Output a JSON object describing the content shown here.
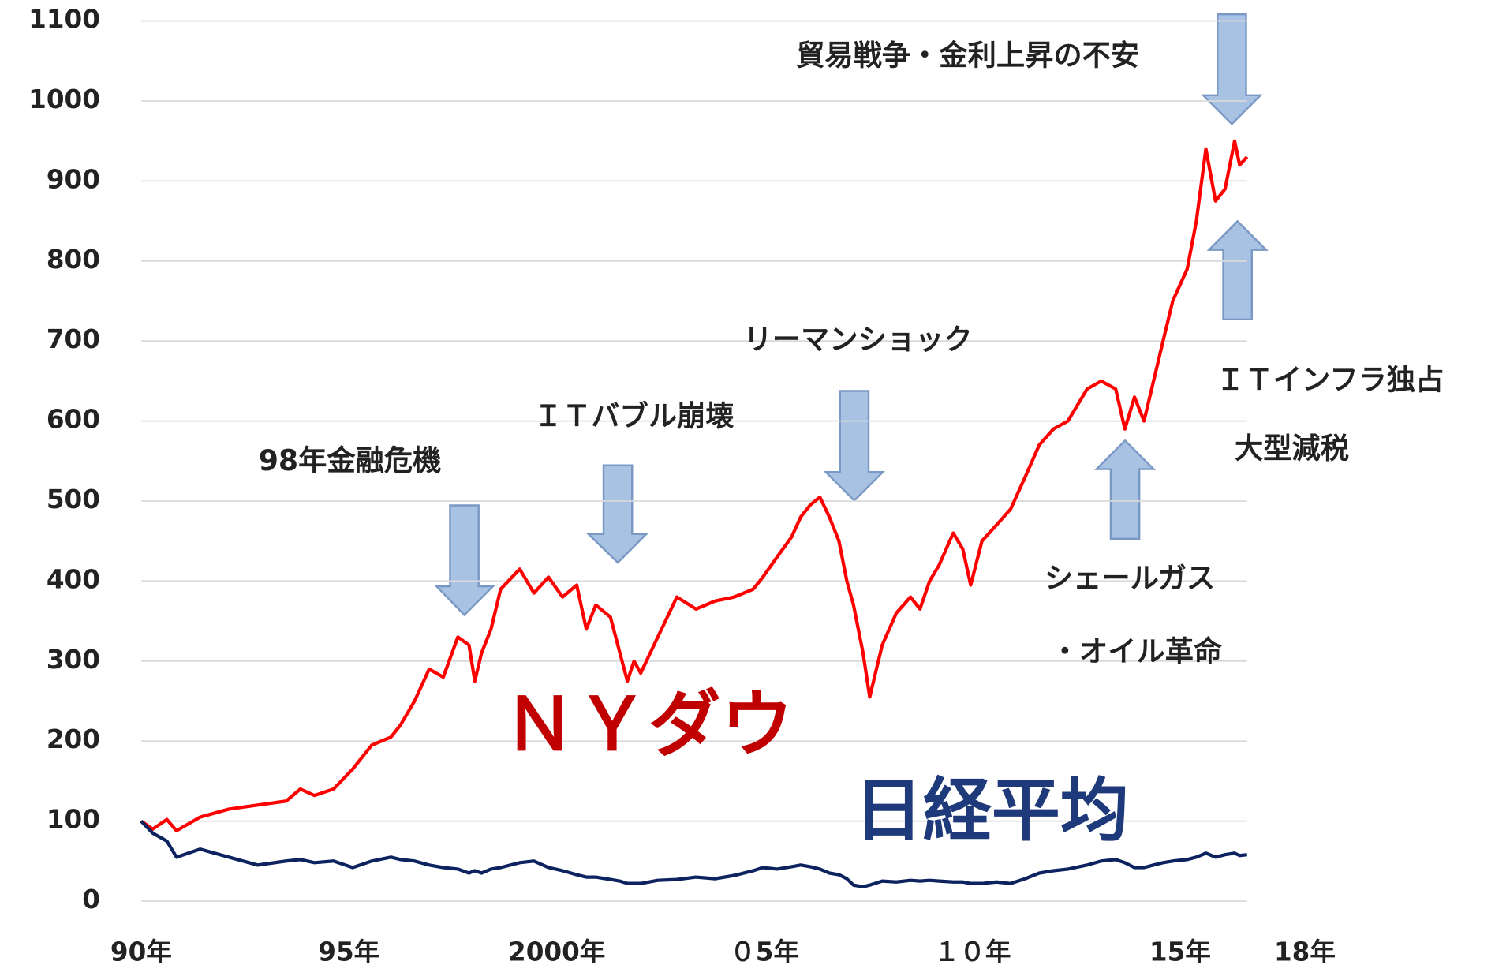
{
  "chart_data": {
    "type": "line",
    "x": [
      1990.0,
      1990.28,
      1990.62,
      1990.85,
      1991.42,
      1992.11,
      1992.8,
      1993.49,
      1993.83,
      1994.17,
      1994.63,
      1995.09,
      1995.55,
      1996.01,
      1996.24,
      1996.58,
      1996.93,
      1997.27,
      1997.62,
      1997.89,
      1998.03,
      1998.19,
      1998.42,
      1998.65,
      1999.11,
      1999.45,
      1999.8,
      2000.14,
      2000.48,
      2000.71,
      2000.94,
      2001.29,
      2001.52,
      2001.7,
      2001.86,
      2002.02,
      2002.43,
      2002.89,
      2003.35,
      2003.81,
      2004.27,
      2004.73,
      2004.96,
      2005.3,
      2005.65,
      2005.87,
      2006.1,
      2006.33,
      2006.56,
      2006.79,
      2006.98,
      2007.14,
      2007.37,
      2007.53,
      2007.83,
      2008.17,
      2008.51,
      2008.74,
      2008.97,
      2009.2,
      2009.54,
      2009.77,
      2009.96,
      2010.23,
      2010.58,
      2010.92,
      2011.27,
      2011.61,
      2011.95,
      2012.3,
      2012.76,
      2013.1,
      2013.45,
      2013.67,
      2013.9,
      2014.13,
      2014.36,
      2014.59,
      2014.82,
      2015.17,
      2015.39,
      2015.62,
      2015.85,
      2016.08,
      2016.31,
      2016.43,
      2016.61
    ],
    "series": [
      {
        "name": "ＮＹダウ",
        "color": "#ff0000",
        "values": [
          100,
          90,
          102,
          88,
          105,
          115,
          120,
          125,
          140,
          132,
          140,
          165,
          195,
          205,
          220,
          250,
          290,
          280,
          330,
          320,
          275,
          310,
          340,
          390,
          415,
          385,
          405,
          380,
          395,
          340,
          370,
          355,
          310,
          275,
          300,
          285,
          330,
          380,
          365,
          375,
          380,
          390,
          405,
          430,
          455,
          480,
          495,
          505,
          480,
          450,
          400,
          370,
          310,
          255,
          320,
          360,
          380,
          365,
          400,
          420,
          460,
          440,
          395,
          450,
          470,
          490,
          530,
          570,
          590,
          600,
          640,
          650,
          640,
          590,
          630,
          600,
          650,
          700,
          750,
          790,
          850,
          940,
          875,
          890,
          950,
          920,
          930
        ]
      },
      {
        "name": "日経平均",
        "color": "#0d2360",
        "values": [
          100,
          85,
          75,
          55,
          65,
          55,
          45,
          50,
          52,
          48,
          50,
          42,
          50,
          55,
          52,
          50,
          45,
          42,
          40,
          35,
          38,
          35,
          40,
          42,
          48,
          50,
          42,
          38,
          33,
          30,
          30,
          27,
          25,
          22,
          22,
          22,
          26,
          27,
          30,
          28,
          32,
          38,
          42,
          40,
          43,
          45,
          43,
          40,
          35,
          33,
          28,
          20,
          18,
          20,
          25,
          24,
          26,
          25,
          26,
          25,
          24,
          24,
          22,
          22,
          24,
          22,
          28,
          35,
          38,
          40,
          45,
          50,
          52,
          48,
          42,
          42,
          45,
          48,
          50,
          52,
          55,
          60,
          55,
          58,
          60,
          57,
          58
        ]
      }
    ],
    "xlim": [
      1990,
      2016.61
    ],
    "xticks": [
      {
        "value": 1990,
        "label": "90年"
      },
      {
        "value": 1995,
        "label": "95年"
      },
      {
        "value": 2000,
        "label": "2000年"
      },
      {
        "value": 2005,
        "label": "０5年"
      },
      {
        "value": 2010,
        "label": "１０年"
      },
      {
        "value": 2015,
        "label": "15年"
      },
      {
        "value": 2018,
        "label": "18年"
      }
    ],
    "ylim": [
      0,
      1100
    ],
    "yticks": [
      0,
      100,
      200,
      300,
      400,
      500,
      600,
      700,
      800,
      900,
      1000,
      1100
    ],
    "grid": true,
    "annotations": [
      "98年金融危機",
      "ＩＴバブル崩壊",
      "リーマンショック",
      "貿易戦争・金利上昇の不安",
      "シェールガス",
      "・オイル革命",
      "ＩＴインフラ独占",
      "大型減税"
    ]
  }
}
